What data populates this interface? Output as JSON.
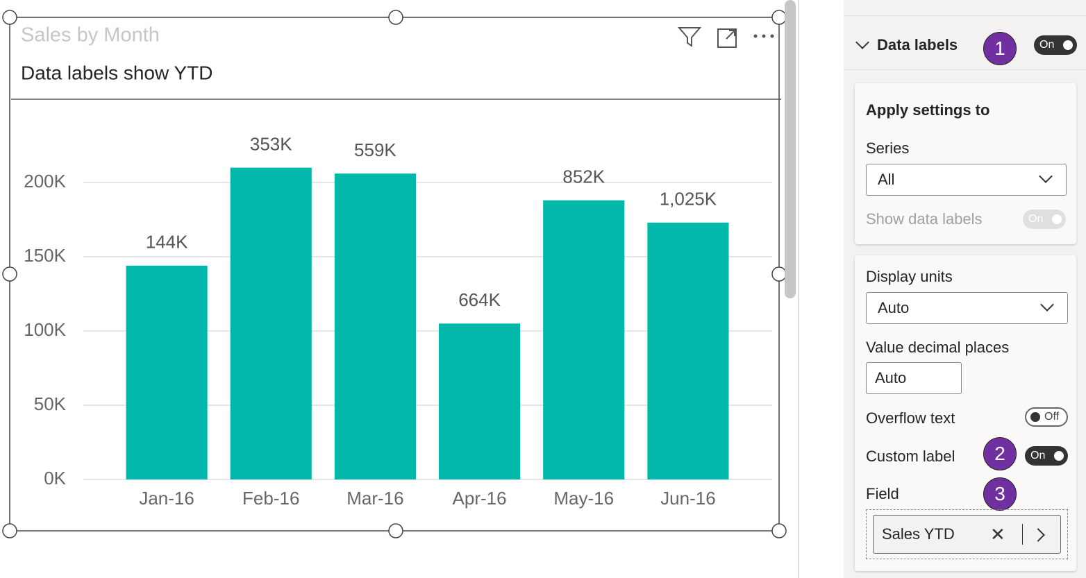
{
  "chart_data": {
    "type": "bar",
    "title": "Sales by Month",
    "subtitle": "Data labels show YTD",
    "categories": [
      "Jan-16",
      "Feb-16",
      "Mar-16",
      "Apr-16",
      "May-16",
      "Jun-16"
    ],
    "values": [
      144000,
      210000,
      206000,
      105000,
      188000,
      173000
    ],
    "data_labels": [
      "144K",
      "353K",
      "559K",
      "664K",
      "852K",
      "1,025K"
    ],
    "color": "#01b8aa",
    "ylim": [
      0,
      250000
    ],
    "yticks": [
      {
        "value": 0,
        "label": "0K"
      },
      {
        "value": 50000,
        "label": "50K"
      },
      {
        "value": 100000,
        "label": "100K"
      },
      {
        "value": 150000,
        "label": "150K"
      },
      {
        "value": 200000,
        "label": "200K"
      }
    ],
    "grid": true
  },
  "format_pane": {
    "section": "Data labels",
    "section_toggle": "On",
    "apply_settings_to": "Apply settings to",
    "series_label": "Series",
    "series_value": "All",
    "show_data_labels": "Show data labels",
    "show_data_labels_toggle": "On",
    "display_units_label": "Display units",
    "display_units_value": "Auto",
    "decimal_places_label": "Value decimal places",
    "decimal_places_value": "Auto",
    "overflow_text": "Overflow text",
    "overflow_toggle": "Off",
    "custom_label": "Custom label",
    "custom_label_toggle": "On",
    "field_label": "Field",
    "field_value": "Sales YTD"
  },
  "callouts": [
    "1",
    "2",
    "3"
  ]
}
